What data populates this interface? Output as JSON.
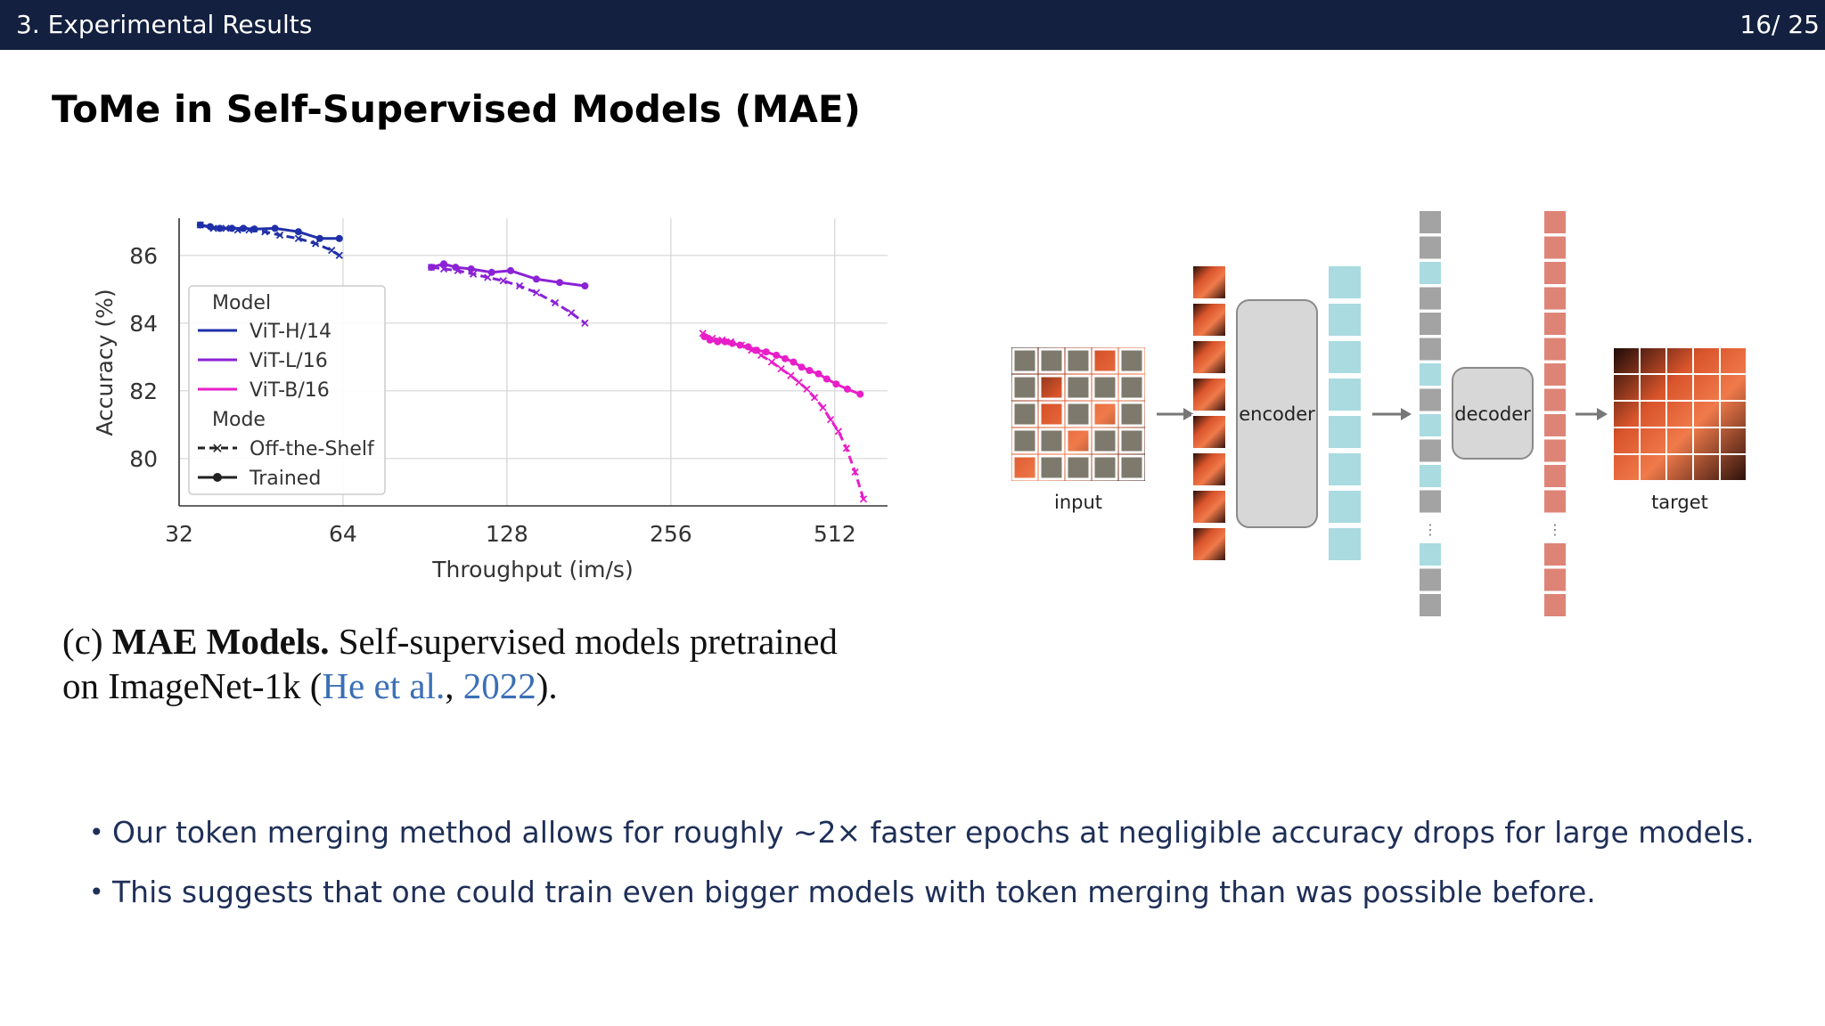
{
  "header": {
    "section": "3. Experimental Results",
    "page": "16/ 25"
  },
  "slide": {
    "title": "ToMe in Self-Supervised Models (MAE)"
  },
  "chart_data": {
    "type": "line",
    "title": "",
    "xlabel": "Throughput (im/s)",
    "ylabel": "Accuracy (%)",
    "x_scale": "log2",
    "xlim": [
      32,
      640
    ],
    "ylim": [
      78.6,
      87.1
    ],
    "xticks": [
      32,
      64,
      128,
      256,
      512
    ],
    "yticks": [
      80,
      82,
      84,
      86
    ],
    "grid": true,
    "legend_position": "left-middle",
    "legend": {
      "model_title": "Model",
      "models": [
        {
          "label": "ViT-H/14",
          "color": "#1f2fa8"
        },
        {
          "label": "ViT-L/16",
          "color": "#8b22d6"
        },
        {
          "label": "ViT-B/16",
          "color": "#e81ec8"
        }
      ],
      "mode_title": "Mode",
      "modes": [
        {
          "label": "Off-the-Shelf",
          "style": "dashed-x"
        },
        {
          "label": "Trained",
          "style": "solid-dot"
        }
      ]
    },
    "series": [
      {
        "name": "ViT-H/14 Trained",
        "model": "ViT-H/14",
        "mode": "Trained",
        "x": [
          35.0,
          36.5,
          38.0,
          40.0,
          42.0,
          44.0,
          48.0,
          53.0,
          58.0,
          63.0
        ],
        "y": [
          86.9,
          86.85,
          86.8,
          86.8,
          86.8,
          86.78,
          86.8,
          86.7,
          86.5,
          86.5
        ]
      },
      {
        "name": "ViT-H/14 Off-the-Shelf",
        "model": "ViT-H/14",
        "mode": "Off-the-Shelf",
        "x": [
          35.0,
          37.0,
          39.0,
          41.0,
          43.0,
          46.0,
          49.0,
          53.0,
          57.0,
          61.0,
          63.0
        ],
        "y": [
          86.9,
          86.8,
          86.8,
          86.75,
          86.75,
          86.7,
          86.6,
          86.5,
          86.35,
          86.15,
          86.0
        ]
      },
      {
        "name": "ViT-L/16 Trained",
        "model": "ViT-L/16",
        "mode": "Trained",
        "x": [
          93.0,
          98.0,
          103.0,
          110.0,
          120.0,
          130.0,
          145.0,
          160.0,
          178.0
        ],
        "y": [
          85.65,
          85.75,
          85.65,
          85.6,
          85.5,
          85.55,
          85.3,
          85.2,
          85.1
        ]
      },
      {
        "name": "ViT-L/16 Off-the-Shelf",
        "model": "ViT-L/16",
        "mode": "Off-the-Shelf",
        "x": [
          93.0,
          98.0,
          104.0,
          111.0,
          118.0,
          126.0,
          135.0,
          145.0,
          157.0,
          168.0,
          178.0
        ],
        "y": [
          85.65,
          85.6,
          85.55,
          85.45,
          85.35,
          85.25,
          85.1,
          84.9,
          84.6,
          84.3,
          84.0
        ]
      },
      {
        "name": "ViT-B/16 Trained",
        "model": "ViT-B/16",
        "mode": "Trained",
        "x": [
          295.0,
          302.0,
          312.0,
          322.0,
          332.0,
          343.0,
          355.0,
          368.0,
          383.0,
          400.0,
          415.0,
          430.0,
          445.0,
          460.0,
          478.0,
          495.0,
          515.0,
          540.0,
          570.0
        ],
        "y": [
          83.6,
          83.5,
          83.45,
          83.45,
          83.4,
          83.35,
          83.3,
          83.2,
          83.15,
          83.05,
          82.95,
          82.85,
          82.7,
          82.6,
          82.5,
          82.35,
          82.2,
          82.05,
          81.9
        ]
      },
      {
        "name": "ViT-B/16 Off-the-Shelf",
        "model": "ViT-B/16",
        "mode": "Off-the-Shelf",
        "x": [
          293.0,
          305.0,
          318.0,
          330.0,
          345.0,
          360.0,
          375.0,
          392.0,
          408.0,
          425.0,
          440.0,
          455.0,
          470.0,
          487.0,
          503.0,
          520.0,
          538.0,
          558.0,
          578.0
        ],
        "y": [
          83.7,
          83.55,
          83.5,
          83.45,
          83.35,
          83.2,
          83.05,
          82.85,
          82.65,
          82.45,
          82.25,
          82.05,
          81.8,
          81.5,
          81.15,
          80.8,
          80.3,
          79.6,
          78.8
        ]
      }
    ]
  },
  "diagram": {
    "input_label": "input",
    "encoder_label": "encoder",
    "decoder_label": "decoder",
    "target_label": "target",
    "ellipsis": "⋮"
  },
  "caption": {
    "prefix": "(c) ",
    "bold": "MAE Models.",
    "text_line1": " Self-supervised models pretrained",
    "text_line2_a": "on ImageNet-1k (",
    "cite_author": "He et al.",
    "comma": ", ",
    "cite_year": "2022",
    "text_line2_b": ")."
  },
  "bullets": [
    "Our token merging method allows for roughly ∼2× faster epochs at negligible accuracy drops for large models.",
    "This suggests that one could train even bigger models with token merging than was possible before."
  ]
}
